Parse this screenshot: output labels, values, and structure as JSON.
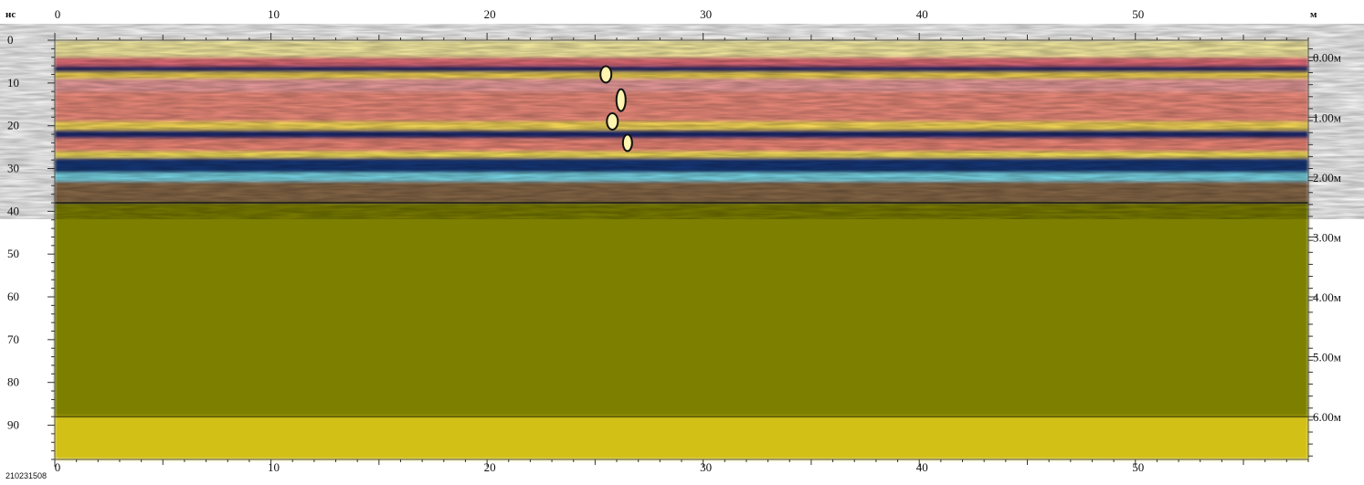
{
  "chart_data": {
    "type": "heatmap",
    "x_unit_label": "м",
    "y_unit_label": "нс",
    "file_id": "210231508",
    "xlim": [
      0,
      58
    ],
    "ylim": [
      0,
      98
    ],
    "x_ticks": [
      0,
      10,
      20,
      30,
      40,
      50
    ],
    "y_ticks": [
      0,
      10,
      20,
      30,
      40,
      50,
      60,
      70,
      80,
      90
    ],
    "depth_ticks": [
      {
        "label": "0.00м",
        "ns": 4
      },
      {
        "label": "1.00м",
        "ns": 18
      },
      {
        "label": "2.00м",
        "ns": 32
      },
      {
        "label": "3.00м",
        "ns": 46
      },
      {
        "label": "4.00м",
        "ns": 60
      },
      {
        "label": "5.00м",
        "ns": 74
      },
      {
        "label": "6.00м",
        "ns": 88
      }
    ],
    "layers": [
      {
        "ns_top": 0,
        "ns_bottom": 4,
        "color": "#fff4a8"
      },
      {
        "ns_top": 4,
        "ns_bottom": 6,
        "color": "#e8707a"
      },
      {
        "ns_top": 6,
        "ns_bottom": 7.5,
        "color": "#1b2a6b"
      },
      {
        "ns_top": 7.5,
        "ns_bottom": 9,
        "color": "#f7d750"
      },
      {
        "ns_top": 9,
        "ns_bottom": 12,
        "color": "#f0a0a0"
      },
      {
        "ns_top": 12,
        "ns_bottom": 19,
        "color": "#f59080"
      },
      {
        "ns_top": 19,
        "ns_bottom": 21,
        "color": "#ffe05a"
      },
      {
        "ns_top": 21,
        "ns_bottom": 23,
        "color": "#1a2b70"
      },
      {
        "ns_top": 23,
        "ns_bottom": 26,
        "color": "#f58a7a"
      },
      {
        "ns_top": 26,
        "ns_bottom": 27.5,
        "color": "#ffe85a"
      },
      {
        "ns_top": 27.5,
        "ns_bottom": 31,
        "color": "#14377a"
      },
      {
        "ns_top": 31,
        "ns_bottom": 33,
        "color": "#7ddff0"
      },
      {
        "ns_top": 33,
        "ns_bottom": 38,
        "color": "#8a6a4a"
      },
      {
        "ns_top": 38,
        "ns_bottom": 88,
        "color": "#7d7f00"
      },
      {
        "ns_top": 88,
        "ns_bottom": 98,
        "color": "#d2c012"
      }
    ]
  }
}
